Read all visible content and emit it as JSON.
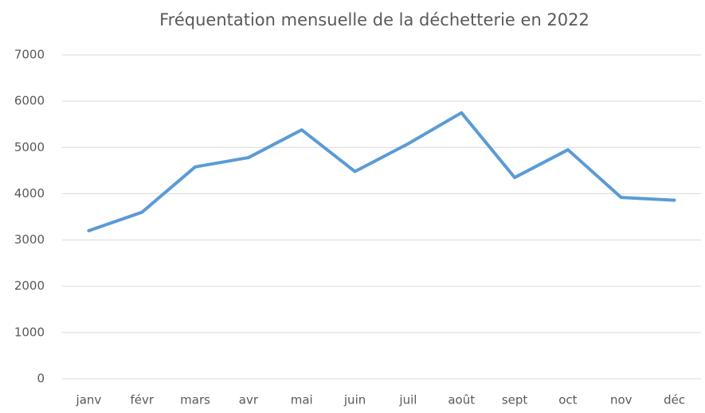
{
  "chart_data": {
    "type": "line",
    "title": "Fréquentation mensuelle de la déchetterie en 2022",
    "categories": [
      "janv",
      "févr",
      "mars",
      "avr",
      "mai",
      "juin",
      "juil",
      "août",
      "sept",
      "oct",
      "nov",
      "déc"
    ],
    "values": [
      3200,
      3600,
      4580,
      4780,
      5380,
      4480,
      5080,
      5750,
      4350,
      4950,
      3920,
      3860
    ],
    "color": "#5b9bd5",
    "ylim": [
      0,
      7000
    ],
    "yticks": [
      0,
      1000,
      2000,
      3000,
      4000,
      5000,
      6000,
      7000
    ],
    "grid": true
  }
}
